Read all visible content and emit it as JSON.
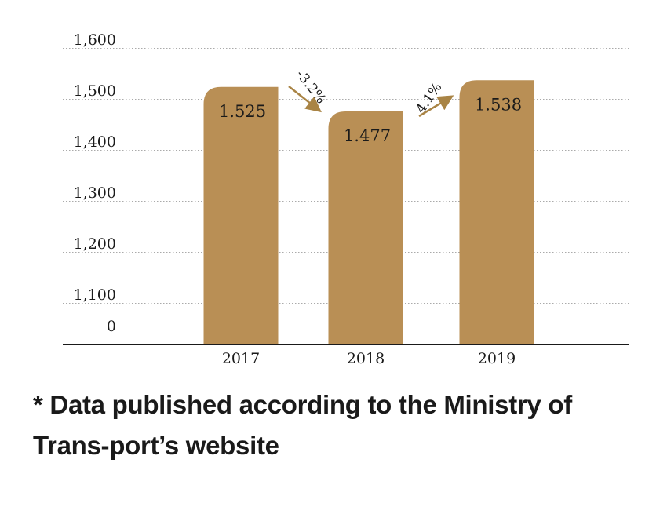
{
  "chart_data": {
    "type": "bar",
    "categories": [
      "2017",
      "2018",
      "2019"
    ],
    "values": [
      1525,
      1477,
      1538
    ],
    "value_labels": [
      "1.525",
      "1.477",
      "1.538"
    ],
    "y_ticks": [
      {
        "value": 0,
        "label": "0"
      },
      {
        "value": 1100,
        "label": "1,100"
      },
      {
        "value": 1200,
        "label": "1,200"
      },
      {
        "value": 1300,
        "label": "1,300"
      },
      {
        "value": 1400,
        "label": "1,400"
      },
      {
        "value": 1500,
        "label": "1,500"
      },
      {
        "value": 1600,
        "label": "1,600"
      }
    ],
    "ylim": [
      0,
      1600
    ],
    "y_axis_break": true,
    "grid": true,
    "changes": [
      {
        "from": "2017",
        "to": "2018",
        "label": "-3.2%",
        "direction": "down"
      },
      {
        "from": "2018",
        "to": "2019",
        "label": "4.1%",
        "direction": "up"
      }
    ],
    "colors": {
      "bar": "#b98f55",
      "arrow": "#a98445",
      "grid": "#555555",
      "axis": "#1a1a1a"
    }
  },
  "footnote": "* Data published according to the Ministry of Trans-port’s website"
}
